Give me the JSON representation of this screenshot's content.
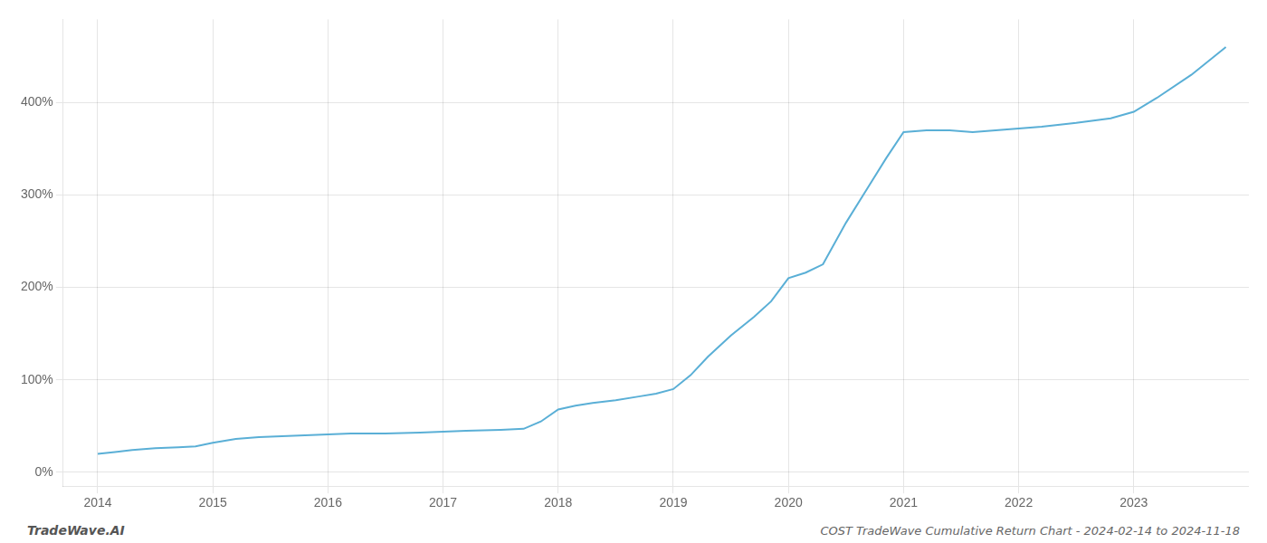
{
  "chart_data": {
    "type": "line",
    "title": "COST TradeWave Cumulative Return Chart - 2024-02-14 to 2024-11-18",
    "annotations": [
      "TradeWave.AI"
    ],
    "color": "#5aafd6",
    "x": [
      2014.0,
      2014.15,
      2014.3,
      2014.5,
      2014.7,
      2014.85,
      2015.0,
      2015.2,
      2015.4,
      2015.6,
      2015.8,
      2016.0,
      2016.2,
      2016.5,
      2016.8,
      2017.0,
      2017.2,
      2017.5,
      2017.7,
      2017.85,
      2018.0,
      2018.15,
      2018.3,
      2018.5,
      2018.7,
      2018.85,
      2019.0,
      2019.15,
      2019.3,
      2019.5,
      2019.7,
      2019.85,
      2020.0,
      2020.15,
      2020.3,
      2020.5,
      2020.7,
      2020.85,
      2021.0,
      2021.2,
      2021.4,
      2021.6,
      2021.8,
      2022.0,
      2022.2,
      2022.5,
      2022.8,
      2023.0,
      2023.2,
      2023.5,
      2023.8
    ],
    "values": [
      20,
      22,
      24,
      26,
      27,
      28,
      32,
      36,
      38,
      39,
      40,
      41,
      42,
      42,
      43,
      44,
      45,
      46,
      47,
      55,
      68,
      72,
      75,
      78,
      82,
      85,
      90,
      105,
      125,
      148,
      168,
      185,
      210,
      216,
      225,
      270,
      310,
      340,
      368,
      370,
      370,
      368,
      370,
      372,
      374,
      378,
      383,
      390,
      405,
      430,
      460
    ],
    "xlim": [
      2013.7,
      2024.0
    ],
    "xticks": [
      2014,
      2015,
      2016,
      2017,
      2018,
      2019,
      2020,
      2021,
      2022,
      2023
    ],
    "ylim": [
      -15,
      490
    ],
    "yticks": [
      {
        "value": 0,
        "label": "0%"
      },
      {
        "value": 100,
        "label": "100%"
      },
      {
        "value": 200,
        "label": "200%"
      },
      {
        "value": 300,
        "label": "300%"
      },
      {
        "value": 400,
        "label": "400%"
      }
    ],
    "grid": true
  }
}
